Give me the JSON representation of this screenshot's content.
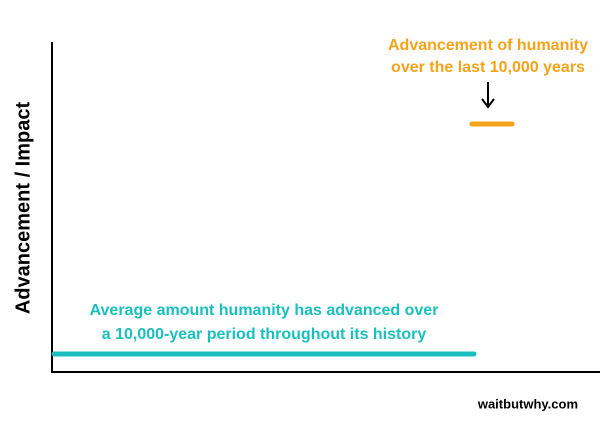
{
  "axis_label": "Advancement / Impact",
  "annotations": [
    {
      "lines": [
        "Advancement of humanity",
        "over the last 10,000 years"
      ]
    },
    {
      "lines": [
        "Average amount humanity has advanced over",
        "a 10,000-year period throughout its history"
      ]
    }
  ],
  "watermark": "waitbutwhy.com"
}
